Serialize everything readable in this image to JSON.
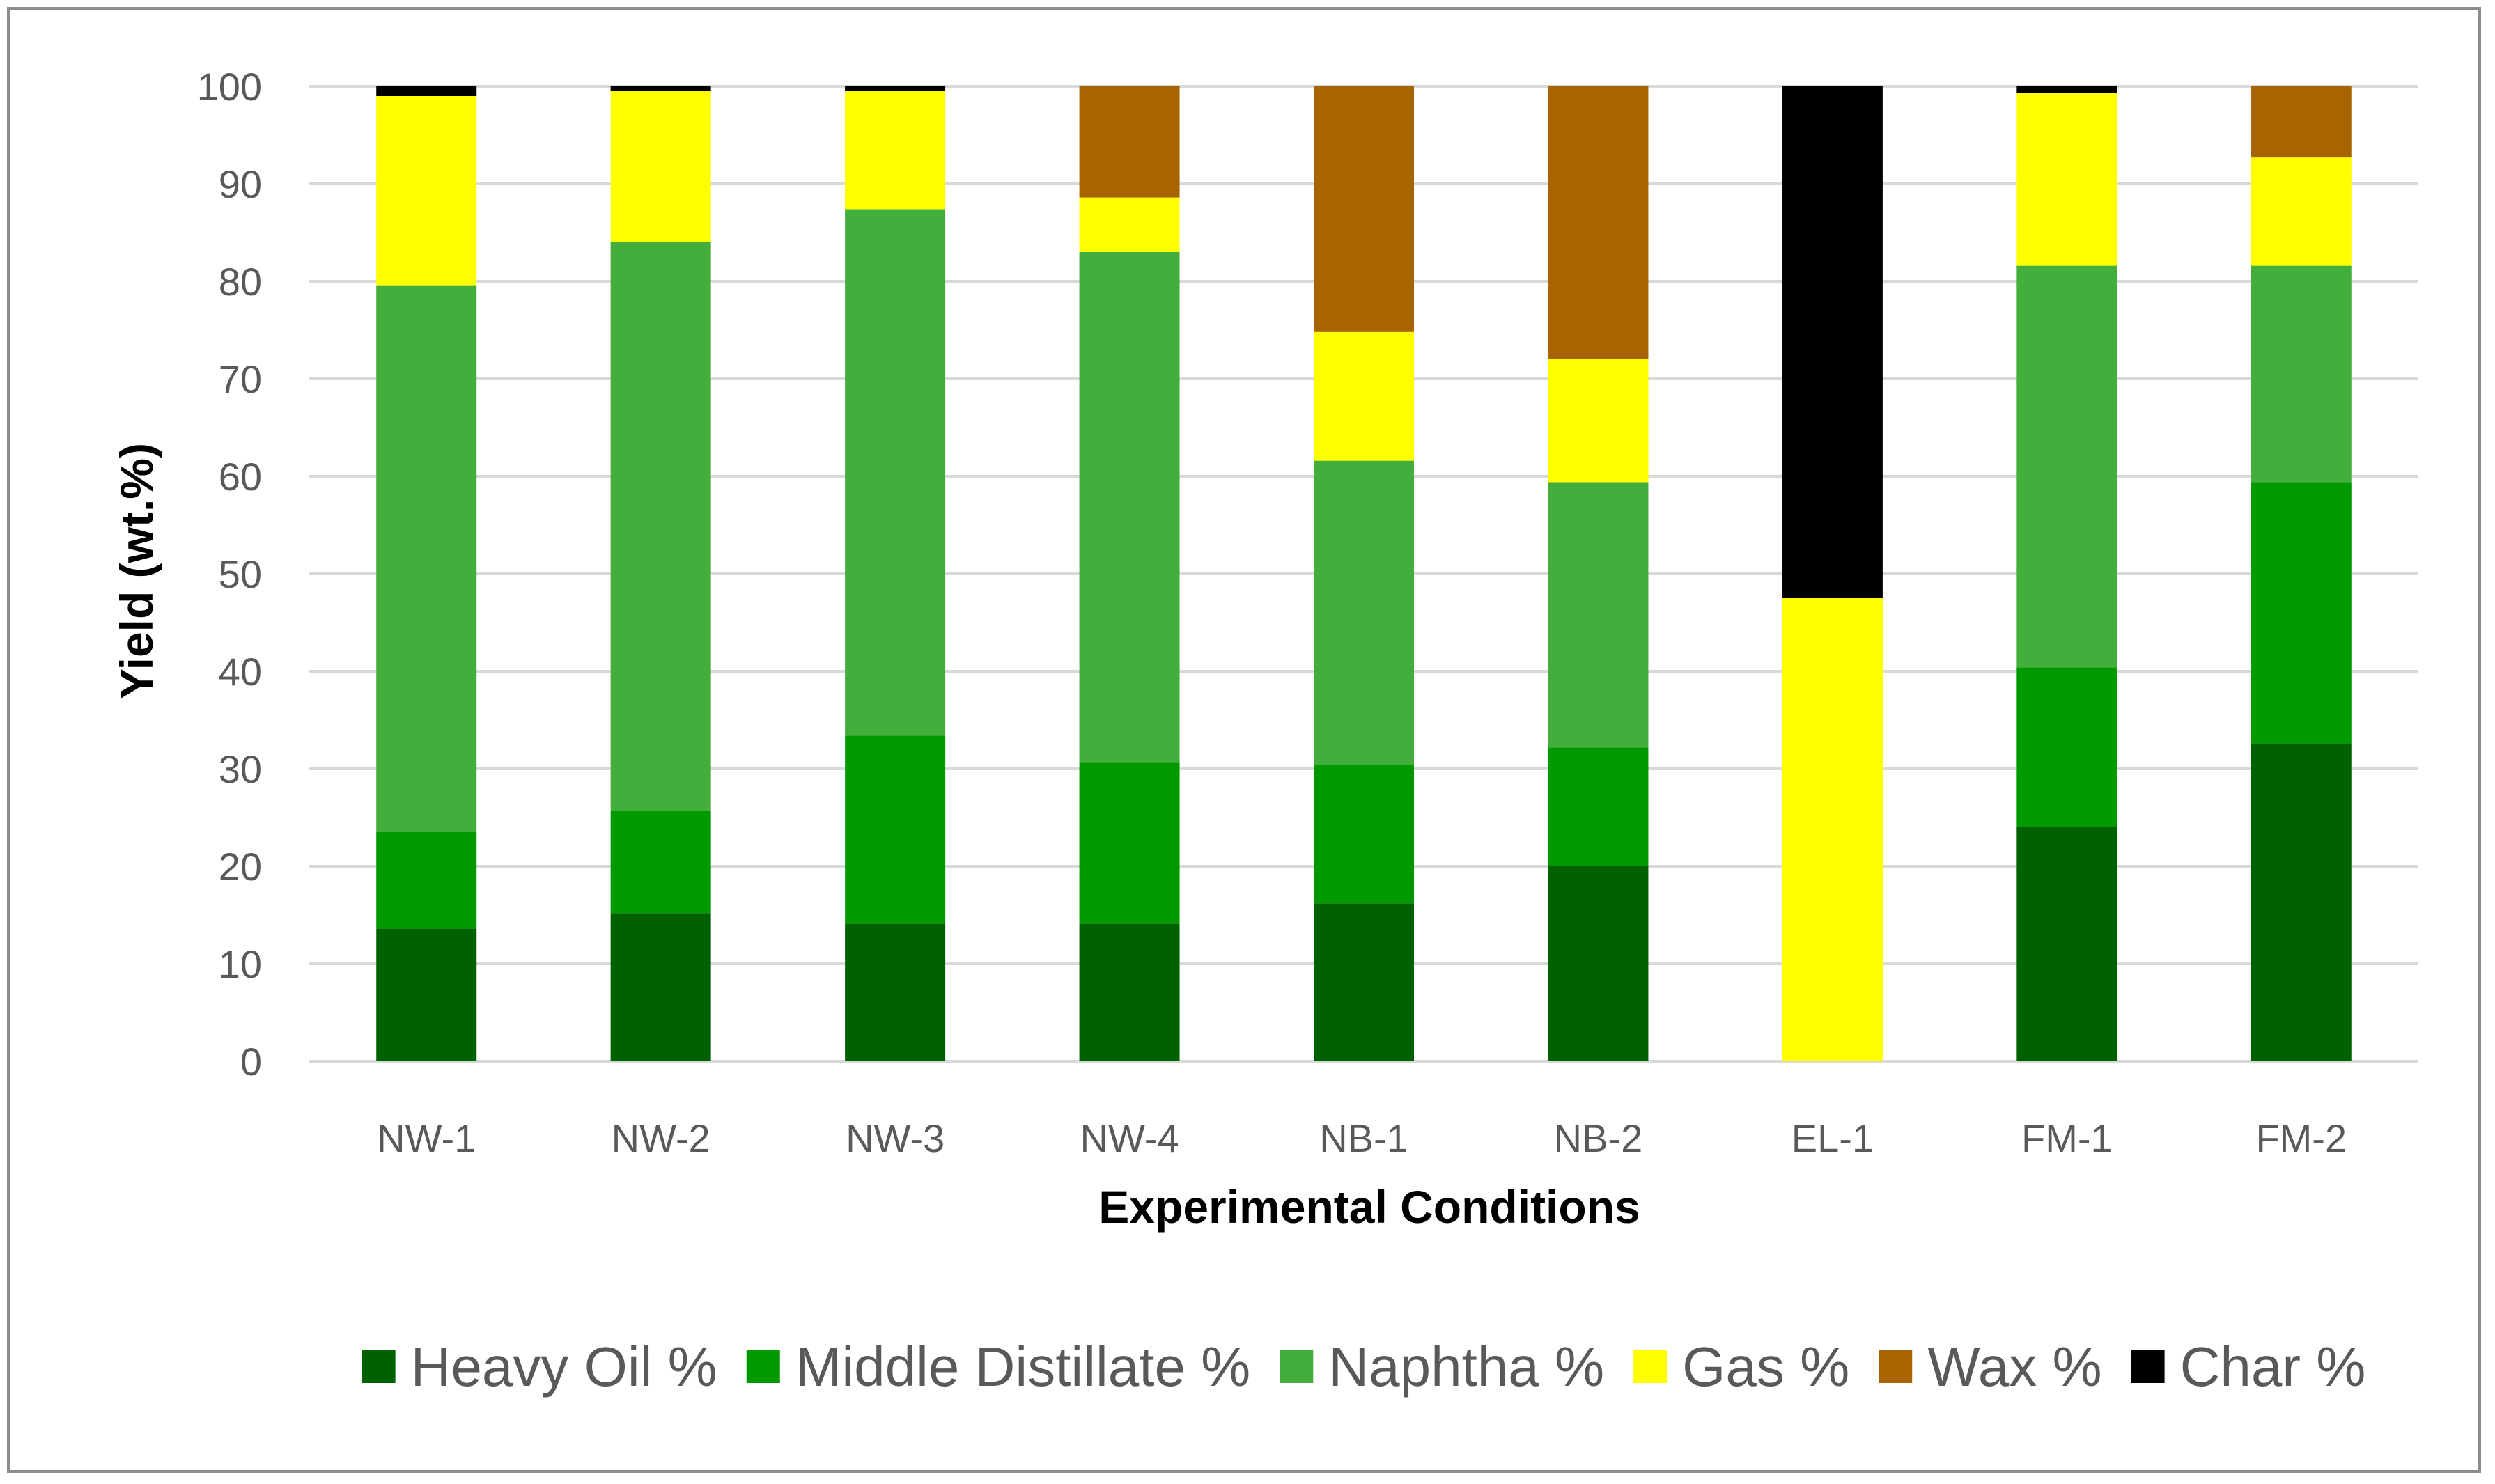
{
  "chart_data": {
    "type": "bar",
    "stacked": true,
    "title": "",
    "xlabel": "Experimental Conditions",
    "ylabel": "Yield (wt.%)",
    "ylim": [
      0,
      100
    ],
    "yticks": [
      0,
      10,
      20,
      30,
      40,
      50,
      60,
      70,
      80,
      90,
      100
    ],
    "grid": true,
    "legend_position": "bottom",
    "categories": [
      "NW-1",
      "NW-2",
      "NW-3",
      "NW-4",
      "NB-1",
      "NB-2",
      "EL-1",
      "FM-1",
      "FM-2"
    ],
    "series": [
      {
        "name": "Heavy Oil %",
        "color": "#006100",
        "values": [
          13.6,
          15.2,
          14.1,
          14.1,
          16.2,
          20.0,
          0.0,
          24.0,
          32.6
        ]
      },
      {
        "name": "Middle Distillate %",
        "color": "#009900",
        "values": [
          9.9,
          10.5,
          19.3,
          16.6,
          14.2,
          12.2,
          0.0,
          16.4,
          26.8
        ]
      },
      {
        "name": "Naphtha %",
        "color": "#44AE3C",
        "values": [
          56.1,
          58.3,
          54.0,
          52.3,
          31.2,
          27.2,
          0.0,
          41.2,
          22.2
        ]
      },
      {
        "name": "Gas %",
        "color": "#FFFF00",
        "values": [
          19.4,
          15.5,
          12.1,
          5.6,
          13.2,
          12.6,
          47.5,
          17.7,
          11.1
        ]
      },
      {
        "name": "Wax %",
        "color": "#A86400",
        "values": [
          0.0,
          0.0,
          0.0,
          11.4,
          25.2,
          28.0,
          0.0,
          0.0,
          7.3
        ]
      },
      {
        "name": "Char %",
        "color": "#000000",
        "values": [
          1.0,
          0.5,
          0.5,
          0.0,
          0.0,
          0.0,
          52.5,
          0.7,
          0.0
        ]
      }
    ]
  }
}
